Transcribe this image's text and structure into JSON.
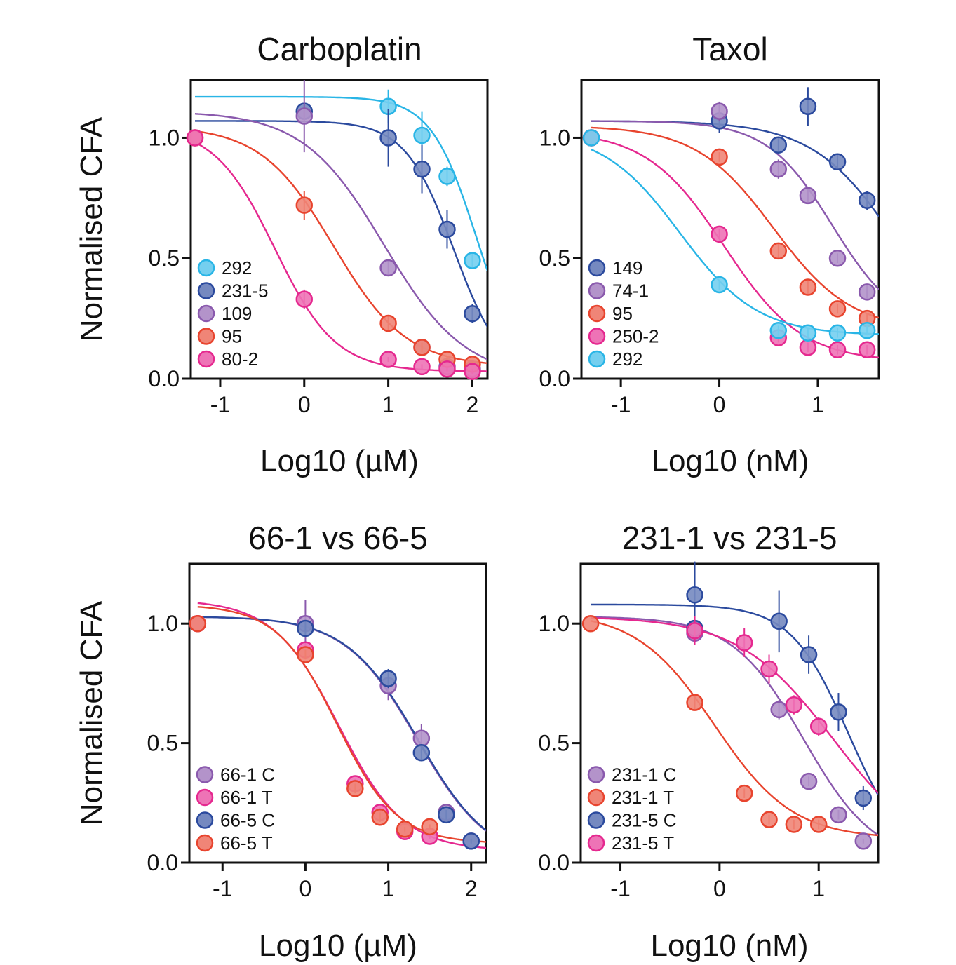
{
  "chart_data": [
    {
      "id": "carboplatin",
      "type": "scatter",
      "title": "Carboplatin",
      "xlabel": "Log10 (µM)",
      "ylabel": "Normalised CFA",
      "xlim": [
        -1.35,
        2.18
      ],
      "ylim": [
        0,
        1.24
      ],
      "xticks": [
        -1,
        0,
        1,
        2
      ],
      "xtick_labels": [
        "-1",
        "0",
        "1",
        "2"
      ],
      "yticks": [
        0,
        0.5,
        1
      ],
      "ytick_labels": [
        "0.0",
        "0.5",
        "1.0"
      ],
      "legend_position": "bottom-left",
      "series": [
        {
          "name": "292",
          "color": "#29b5e6",
          "curve": {
            "top": 1.17,
            "bottom": 0.0,
            "ec50": 2.05,
            "hill": 1.6
          },
          "points": [
            {
              "x": 1.0,
              "y": 1.13,
              "err": 0.07
            },
            {
              "x": 1.4,
              "y": 1.01,
              "err": 0.1
            },
            {
              "x": 1.7,
              "y": 0.84,
              "err": 0.04
            },
            {
              "x": 2.0,
              "y": 0.49,
              "err": 0.03
            }
          ]
        },
        {
          "name": "231-5",
          "color": "#2b4a9e",
          "curve": {
            "top": 1.07,
            "bottom": 0.0,
            "ec50": 1.78,
            "hill": 1.5
          },
          "points": [
            {
              "x": 0.0,
              "y": 1.11,
              "err": 0.03
            },
            {
              "x": 1.0,
              "y": 1.0,
              "err": 0.12
            },
            {
              "x": 1.4,
              "y": 0.87,
              "err": 0.1
            },
            {
              "x": 1.7,
              "y": 0.62,
              "err": 0.08
            },
            {
              "x": 2.0,
              "y": 0.27,
              "err": 0.04
            }
          ]
        },
        {
          "name": "109",
          "color": "#8a59ad",
          "curve": {
            "top": 1.11,
            "bottom": 0.0,
            "ec50": 0.95,
            "hill": 0.9
          },
          "points": [
            {
              "x": 0.0,
              "y": 1.09,
              "err": 0.15
            },
            {
              "x": 1.0,
              "y": 0.46,
              "err": 0.03
            },
            {
              "x": 1.4,
              "y": 0.13,
              "err": 0.02
            },
            {
              "x": 1.7,
              "y": 0.05,
              "err": 0.01
            },
            {
              "x": 2.0,
              "y": 0.04,
              "err": 0.01
            }
          ]
        },
        {
          "name": "95",
          "color": "#e8442e",
          "curve": {
            "top": 1.05,
            "bottom": 0.05,
            "ec50": 0.35,
            "hill": 1.0
          },
          "points": [
            {
              "x": -1.3,
              "y": 1.0,
              "err": 0
            },
            {
              "x": 0.0,
              "y": 0.72,
              "err": 0.06
            },
            {
              "x": 1.0,
              "y": 0.23,
              "err": 0.03
            },
            {
              "x": 1.4,
              "y": 0.13,
              "err": 0.02
            },
            {
              "x": 1.7,
              "y": 0.08,
              "err": 0.01
            },
            {
              "x": 2.0,
              "y": 0.06,
              "err": 0.01
            }
          ]
        },
        {
          "name": "80-2",
          "color": "#e5288f",
          "curve": {
            "top": 1.05,
            "bottom": 0.03,
            "ec50": -0.35,
            "hill": 1.2
          },
          "points": [
            {
              "x": -1.3,
              "y": 1.0,
              "err": 0
            },
            {
              "x": 0.0,
              "y": 0.33,
              "err": 0.04
            },
            {
              "x": 1.0,
              "y": 0.08,
              "err": 0.01
            },
            {
              "x": 1.4,
              "y": 0.05,
              "err": 0.01
            },
            {
              "x": 1.7,
              "y": 0.04,
              "err": 0.01
            },
            {
              "x": 2.0,
              "y": 0.03,
              "err": 0.01
            }
          ]
        }
      ]
    },
    {
      "id": "taxol",
      "type": "scatter",
      "title": "Taxol",
      "xlabel": "Log10 (nM)",
      "ylabel": "",
      "xlim": [
        -1.4,
        1.62
      ],
      "ylim": [
        0,
        1.24
      ],
      "xticks": [
        -1,
        0,
        1
      ],
      "xtick_labels": [
        "-1",
        "0",
        "1"
      ],
      "yticks": [
        0,
        0.5,
        1
      ],
      "ytick_labels": [
        "0.0",
        "0.5",
        "1.0"
      ],
      "legend_position": "bottom-left",
      "series": [
        {
          "name": "149",
          "color": "#2b4a9e",
          "curve": {
            "top": 1.07,
            "bottom": 0.0,
            "ec50": 1.85,
            "hill": 1.0
          },
          "points": [
            {
              "x": 0.0,
              "y": 1.07,
              "err": 0.05
            },
            {
              "x": 0.6,
              "y": 0.97,
              "err": 0.03
            },
            {
              "x": 0.9,
              "y": 1.13,
              "err": 0.08
            },
            {
              "x": 1.2,
              "y": 0.9,
              "err": 0.03
            },
            {
              "x": 1.5,
              "y": 0.74,
              "err": 0.04
            }
          ]
        },
        {
          "name": "74-1",
          "color": "#8a59ad",
          "curve": {
            "top": 1.07,
            "bottom": 0.2,
            "ec50": 1.15,
            "hill": 1.3
          },
          "points": [
            {
              "x": 0.0,
              "y": 1.11,
              "err": 0.04
            },
            {
              "x": 0.6,
              "y": 0.87,
              "err": 0.04
            },
            {
              "x": 0.9,
              "y": 0.76,
              "err": 0.03
            },
            {
              "x": 1.2,
              "y": 0.5,
              "err": 0.02
            },
            {
              "x": 1.5,
              "y": 0.36,
              "err": 0.03
            }
          ]
        },
        {
          "name": "95",
          "color": "#e8442e",
          "curve": {
            "top": 1.05,
            "bottom": 0.2,
            "ec50": 0.55,
            "hill": 1.1
          },
          "points": [
            {
              "x": -1.3,
              "y": 1.0,
              "err": 0
            },
            {
              "x": 0.0,
              "y": 0.92,
              "err": 0.02
            },
            {
              "x": 0.6,
              "y": 0.53,
              "err": 0.03
            },
            {
              "x": 0.9,
              "y": 0.38,
              "err": 0.03
            },
            {
              "x": 1.2,
              "y": 0.29,
              "err": 0.02
            },
            {
              "x": 1.5,
              "y": 0.25,
              "err": 0.02
            }
          ]
        },
        {
          "name": "250-2",
          "color": "#e5288f",
          "curve": {
            "top": 1.03,
            "bottom": 0.07,
            "ec50": 0.05,
            "hill": 1.1
          },
          "points": [
            {
              "x": -1.3,
              "y": 1.0,
              "err": 0
            },
            {
              "x": 0.0,
              "y": 0.6,
              "err": 0.02
            },
            {
              "x": 0.6,
              "y": 0.17,
              "err": 0.02
            },
            {
              "x": 0.9,
              "y": 0.13,
              "err": 0.02
            },
            {
              "x": 1.2,
              "y": 0.12,
              "err": 0.02
            },
            {
              "x": 1.5,
              "y": 0.12,
              "err": 0.02
            }
          ]
        },
        {
          "name": "292",
          "color": "#29b5e6",
          "curve": {
            "top": 1.03,
            "bottom": 0.18,
            "ec50": -0.4,
            "hill": 1.1
          },
          "points": [
            {
              "x": -1.3,
              "y": 1.0,
              "err": 0
            },
            {
              "x": 0.0,
              "y": 0.39,
              "err": 0.02
            },
            {
              "x": 0.6,
              "y": 0.2,
              "err": 0.02
            },
            {
              "x": 0.9,
              "y": 0.19,
              "err": 0.02
            },
            {
              "x": 1.2,
              "y": 0.19,
              "err": 0.02
            },
            {
              "x": 1.5,
              "y": 0.2,
              "err": 0.02
            }
          ]
        }
      ]
    },
    {
      "id": "66-1-vs-66-5",
      "type": "scatter",
      "title": "66-1 vs 66-5",
      "xlabel": "Log10 (µM)",
      "ylabel": "Normalised CFA",
      "xlim": [
        -1.4,
        2.18
      ],
      "ylim": [
        0,
        1.25
      ],
      "xticks": [
        -1,
        0,
        1,
        2
      ],
      "xtick_labels": [
        "-1",
        "0",
        "1",
        "2"
      ],
      "yticks": [
        0,
        0.5,
        1
      ],
      "ytick_labels": [
        "0.0",
        "0.5",
        "1.0"
      ],
      "legend_position": "bottom-left",
      "series": [
        {
          "name": "66-1 C",
          "color": "#8a59ad",
          "curve": {
            "top": 1.03,
            "bottom": 0.0,
            "ec50": 1.35,
            "hill": 1.0
          },
          "points": [
            {
              "x": -1.3,
              "y": 1.0,
              "err": 0
            },
            {
              "x": 0.0,
              "y": 1.0,
              "err": 0.1
            },
            {
              "x": 1.0,
              "y": 0.74,
              "err": 0.06
            },
            {
              "x": 1.4,
              "y": 0.52,
              "err": 0.06
            },
            {
              "x": 1.7,
              "y": 0.21,
              "err": 0.02
            },
            {
              "x": 2.0,
              "y": 0.09,
              "err": 0.01
            }
          ]
        },
        {
          "name": "66-1 T",
          "color": "#e5288f",
          "curve": {
            "top": 1.1,
            "bottom": 0.05,
            "ec50": 0.4,
            "hill": 1.1
          },
          "points": [
            {
              "x": -1.3,
              "y": 1.0,
              "err": 0
            },
            {
              "x": 0.0,
              "y": 0.89,
              "err": 0.02
            },
            {
              "x": 0.6,
              "y": 0.33,
              "err": 0.02
            },
            {
              "x": 0.9,
              "y": 0.21,
              "err": 0.02
            },
            {
              "x": 1.2,
              "y": 0.13,
              "err": 0.01
            },
            {
              "x": 1.5,
              "y": 0.11,
              "err": 0.01
            }
          ]
        },
        {
          "name": "66-5 C",
          "color": "#2b4a9e",
          "curve": {
            "top": 1.03,
            "bottom": 0.0,
            "ec50": 1.36,
            "hill": 1.0
          },
          "points": [
            {
              "x": 0.0,
              "y": 0.98,
              "err": 0.03
            },
            {
              "x": 1.0,
              "y": 0.77,
              "err": 0.04
            },
            {
              "x": 1.4,
              "y": 0.46,
              "err": 0.03
            },
            {
              "x": 1.7,
              "y": 0.2,
              "err": 0.02
            },
            {
              "x": 2.0,
              "y": 0.09,
              "err": 0.01
            }
          ]
        },
        {
          "name": "66-5 T",
          "color": "#e8442e",
          "curve": {
            "top": 1.08,
            "bottom": 0.08,
            "ec50": 0.38,
            "hill": 1.2
          },
          "points": [
            {
              "x": -1.3,
              "y": 1.0,
              "err": 0
            },
            {
              "x": 0.0,
              "y": 0.87,
              "err": 0.02
            },
            {
              "x": 0.6,
              "y": 0.31,
              "err": 0.02
            },
            {
              "x": 0.9,
              "y": 0.19,
              "err": 0.02
            },
            {
              "x": 1.2,
              "y": 0.14,
              "err": 0.01
            },
            {
              "x": 1.5,
              "y": 0.15,
              "err": 0.01
            }
          ]
        }
      ]
    },
    {
      "id": "231-1-vs-231-5",
      "type": "scatter",
      "title": "231-1 vs 231-5",
      "xlabel": "Log10 (nM)",
      "ylabel": "",
      "xlim": [
        -1.4,
        1.6
      ],
      "ylim": [
        0,
        1.25
      ],
      "xticks": [
        -1,
        0,
        1
      ],
      "xtick_labels": [
        "-1",
        "0",
        "1"
      ],
      "yticks": [
        0,
        0.5,
        1
      ],
      "ytick_labels": [
        "0.0",
        "0.5",
        "1.0"
      ],
      "legend_position": "bottom-left",
      "series": [
        {
          "name": "231-1 C",
          "color": "#8a59ad",
          "curve": {
            "top": 1.03,
            "bottom": 0.0,
            "ec50": 0.85,
            "hill": 1.2
          },
          "points": [
            {
              "x": -0.25,
              "y": 0.96,
              "err": 0.03
            },
            {
              "x": 0.6,
              "y": 0.64,
              "err": 0.04
            },
            {
              "x": 0.9,
              "y": 0.34,
              "err": 0.02
            },
            {
              "x": 1.2,
              "y": 0.2,
              "err": 0.02
            },
            {
              "x": 1.45,
              "y": 0.09,
              "err": 0.01
            }
          ]
        },
        {
          "name": "231-1 T",
          "color": "#e8442e",
          "curve": {
            "top": 1.05,
            "bottom": 0.1,
            "ec50": -0.05,
            "hill": 1.1
          },
          "points": [
            {
              "x": -1.3,
              "y": 1.0,
              "err": 0
            },
            {
              "x": -0.25,
              "y": 0.67,
              "err": 0.03
            },
            {
              "x": 0.25,
              "y": 0.29,
              "err": 0.02
            },
            {
              "x": 0.5,
              "y": 0.18,
              "err": 0.02
            },
            {
              "x": 0.75,
              "y": 0.16,
              "err": 0.02
            },
            {
              "x": 1.0,
              "y": 0.16,
              "err": 0.02
            }
          ]
        },
        {
          "name": "231-5 C",
          "color": "#2b4a9e",
          "curve": {
            "top": 1.08,
            "bottom": 0.0,
            "ec50": 1.3,
            "hill": 1.5
          },
          "points": [
            {
              "x": -0.25,
              "y": 1.12,
              "err": 0.14
            },
            {
              "x": -0.25,
              "y": 0.98,
              "err": 0.03
            },
            {
              "x": 0.6,
              "y": 1.01,
              "err": 0.13
            },
            {
              "x": 0.9,
              "y": 0.87,
              "err": 0.08
            },
            {
              "x": 1.2,
              "y": 0.63,
              "err": 0.08
            },
            {
              "x": 1.45,
              "y": 0.27,
              "err": 0.05
            }
          ]
        },
        {
          "name": "231-5 T",
          "color": "#e5288f",
          "curve": {
            "top": 1.03,
            "bottom": 0.0,
            "ec50": 1.15,
            "hill": 0.9
          },
          "points": [
            {
              "x": -0.25,
              "y": 0.97,
              "err": 0.06
            },
            {
              "x": 0.25,
              "y": 0.92,
              "err": 0.06
            },
            {
              "x": 0.5,
              "y": 0.81,
              "err": 0.06
            },
            {
              "x": 0.75,
              "y": 0.66,
              "err": 0.04
            },
            {
              "x": 1.0,
              "y": 0.57,
              "err": 0.04
            }
          ]
        }
      ]
    }
  ]
}
